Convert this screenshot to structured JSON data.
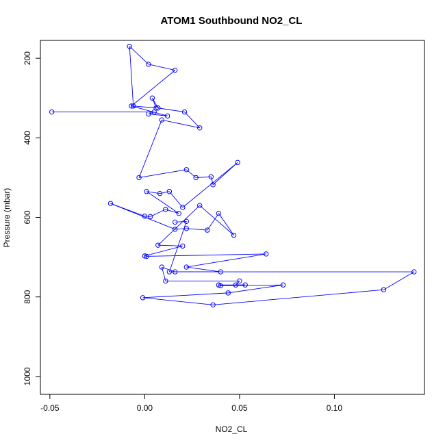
{
  "chart_data": {
    "type": "line",
    "title": "ATOM1 Southbound NO2_CL",
    "xlabel": "NO2_CL",
    "ylabel": "Pressure (mbar)",
    "xlim": [
      -0.055,
      0.1475
    ],
    "ylim": [
      1045,
      155
    ],
    "y_reversed": true,
    "x_ticks": [
      -0.05,
      0.0,
      0.05,
      0.1
    ],
    "x_tick_labels": [
      "-0.05",
      "0.00",
      "0.05",
      "0.10"
    ],
    "y_ticks": [
      200,
      400,
      600,
      800,
      1000
    ],
    "y_tick_labels": [
      "200",
      "400",
      "600",
      "800",
      "1000"
    ],
    "grid": false,
    "markers": "open-circle",
    "series": [
      {
        "color": "#0000ff",
        "points": [
          [
            -0.049,
            335
          ],
          [
            0.005,
            335
          ],
          [
            0.002,
            340
          ],
          [
            0.012,
            345
          ],
          [
            -0.007,
            320
          ],
          [
            0.016,
            230
          ],
          [
            0.002,
            215
          ],
          [
            -0.008,
            170
          ],
          [
            -0.006,
            320
          ],
          [
            0.006,
            325
          ],
          [
            0.004,
            300
          ],
          [
            0.007,
            325
          ],
          [
            0.021,
            335
          ],
          [
            0.029,
            375
          ],
          [
            0.009,
            355
          ],
          [
            -0.003,
            500
          ],
          [
            0.022,
            480
          ],
          [
            0.027,
            500
          ],
          [
            0.035,
            498
          ],
          [
            0.036,
            518
          ],
          [
            0.049,
            462
          ],
          [
            0.02,
            575
          ],
          [
            0.013,
            535
          ],
          [
            0.008,
            540
          ],
          [
            0.001,
            535
          ],
          [
            0.018,
            590
          ],
          [
            0.011,
            580
          ],
          [
            0.003,
            598
          ],
          [
            0.0,
            597
          ],
          [
            -0.018,
            565
          ],
          [
            0.016,
            630
          ],
          [
            0.022,
            628
          ],
          [
            0.033,
            632
          ],
          [
            0.039,
            590
          ],
          [
            0.047,
            645
          ],
          [
            0.029,
            570
          ],
          [
            0.007,
            670
          ],
          [
            0.02,
            672
          ],
          [
            0.0,
            697
          ],
          [
            0.001,
            698
          ],
          [
            0.064,
            692
          ],
          [
            0.022,
            725
          ],
          [
            0.04,
            737
          ],
          [
            0.016,
            737
          ],
          [
            0.009,
            725
          ],
          [
            0.011,
            760
          ],
          [
            0.05,
            760
          ],
          [
            0.048,
            770
          ],
          [
            0.053,
            770
          ],
          [
            0.039,
            770
          ],
          [
            0.04,
            772
          ],
          [
            0.073,
            770
          ],
          [
            0.044,
            790
          ],
          [
            -0.001,
            802
          ],
          [
            0.036,
            820
          ],
          [
            0.126,
            782
          ],
          [
            0.142,
            737
          ],
          [
            0.013,
            737
          ],
          [
            0.022,
            610
          ],
          [
            0.016,
            612
          ]
        ]
      }
    ]
  }
}
